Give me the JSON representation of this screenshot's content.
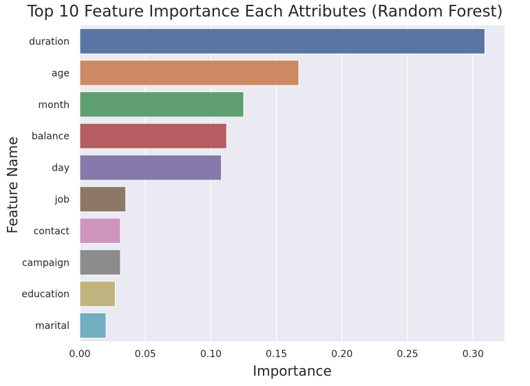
{
  "chart_data": {
    "type": "bar",
    "orientation": "horizontal",
    "title": "Top 10 Feature Importance Each Attributes (Random Forest)",
    "xlabel": "Importance",
    "ylabel": "Feature Name",
    "categories": [
      "duration",
      "age",
      "month",
      "balance",
      "day",
      "job",
      "contact",
      "campaign",
      "education",
      "marital"
    ],
    "values": [
      0.309,
      0.167,
      0.125,
      0.112,
      0.108,
      0.035,
      0.031,
      0.031,
      0.027,
      0.02
    ],
    "colors": [
      "#5875a4",
      "#cc8963",
      "#5f9e6e",
      "#b55d60",
      "#857aab",
      "#8d7866",
      "#d095bf",
      "#8c8c8c",
      "#c1b37f",
      "#71aec0"
    ],
    "xlim": [
      0,
      0.324
    ],
    "xticks": [
      "0.00",
      "0.05",
      "0.10",
      "0.15",
      "0.20",
      "0.25",
      "0.30"
    ],
    "grid": true,
    "background": "#eaeaf2"
  }
}
